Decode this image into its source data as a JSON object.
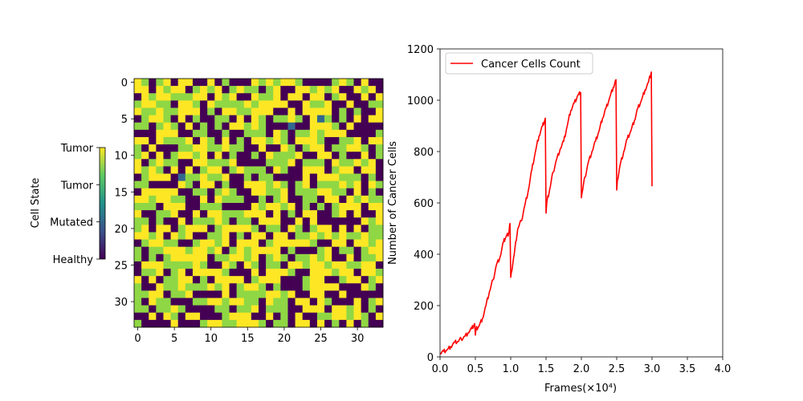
{
  "chart_data": [
    {
      "type": "heatmap",
      "rows": 34,
      "cols": 34,
      "xticks": [
        "0",
        "5",
        "10",
        "15",
        "20",
        "25",
        "30"
      ],
      "yticks": [
        "0",
        "5",
        "10",
        "15",
        "20",
        "25",
        "30"
      ],
      "states": [
        0,
        1,
        2,
        3
      ],
      "state_colors": [
        "#440154",
        "#31688e",
        "#8fd744",
        "#fde725"
      ],
      "values": [
        [
          3,
          2,
          0,
          2,
          3,
          0,
          3,
          3,
          0,
          0,
          3,
          0,
          2,
          0,
          0,
          0,
          3,
          2,
          3,
          2,
          3,
          3,
          2,
          0,
          0,
          0,
          0,
          2,
          3,
          2,
          0,
          3,
          0,
          0
        ],
        [
          3,
          3,
          0,
          3,
          2,
          3,
          3,
          0,
          2,
          3,
          2,
          3,
          0,
          2,
          3,
          2,
          2,
          0,
          2,
          3,
          0,
          0,
          3,
          3,
          2,
          3,
          2,
          3,
          0,
          0,
          3,
          2,
          3,
          0
        ],
        [
          0,
          3,
          2,
          3,
          3,
          2,
          2,
          2,
          3,
          3,
          0,
          3,
          2,
          3,
          0,
          0,
          3,
          2,
          2,
          3,
          0,
          3,
          3,
          0,
          3,
          3,
          0,
          2,
          3,
          0,
          0,
          3,
          0,
          3
        ],
        [
          2,
          3,
          3,
          2,
          2,
          0,
          3,
          3,
          2,
          0,
          3,
          2,
          2,
          2,
          2,
          3,
          2,
          3,
          3,
          3,
          3,
          0,
          0,
          3,
          2,
          2,
          3,
          0,
          0,
          3,
          0,
          0,
          2,
          2
        ],
        [
          3,
          2,
          2,
          3,
          2,
          2,
          3,
          3,
          3,
          0,
          2,
          0,
          3,
          3,
          2,
          2,
          3,
          3,
          3,
          0,
          0,
          3,
          0,
          3,
          3,
          3,
          3,
          0,
          2,
          0,
          2,
          0,
          0,
          3
        ],
        [
          0,
          2,
          3,
          3,
          2,
          0,
          3,
          0,
          2,
          0,
          0,
          2,
          2,
          0,
          3,
          0,
          3,
          2,
          0,
          2,
          2,
          3,
          2,
          0,
          3,
          1,
          2,
          0,
          2,
          0,
          3,
          0,
          3,
          3
        ],
        [
          2,
          2,
          0,
          2,
          3,
          2,
          0,
          3,
          0,
          2,
          0,
          2,
          0,
          3,
          3,
          2,
          3,
          2,
          0,
          0,
          0,
          1,
          0,
          0,
          3,
          3,
          3,
          2,
          0,
          3,
          0,
          0,
          0,
          0
        ],
        [
          0,
          0,
          0,
          3,
          3,
          3,
          0,
          0,
          2,
          2,
          0,
          0,
          2,
          0,
          0,
          2,
          2,
          2,
          0,
          3,
          2,
          0,
          2,
          2,
          3,
          2,
          3,
          3,
          3,
          0,
          0,
          0,
          0,
          2
        ],
        [
          3,
          3,
          0,
          3,
          2,
          2,
          2,
          3,
          0,
          3,
          2,
          0,
          3,
          0,
          2,
          0,
          3,
          3,
          2,
          3,
          2,
          0,
          3,
          3,
          3,
          2,
          0,
          0,
          2,
          2,
          3,
          0,
          3,
          3
        ],
        [
          2,
          0,
          3,
          0,
          0,
          0,
          2,
          2,
          3,
          3,
          2,
          2,
          3,
          2,
          2,
          0,
          0,
          3,
          0,
          0,
          3,
          2,
          0,
          2,
          3,
          3,
          0,
          2,
          2,
          3,
          3,
          2,
          0,
          2
        ],
        [
          2,
          3,
          0,
          3,
          0,
          2,
          3,
          3,
          2,
          3,
          0,
          3,
          0,
          2,
          0,
          0,
          2,
          0,
          3,
          2,
          2,
          2,
          3,
          0,
          0,
          3,
          3,
          0,
          2,
          0,
          0,
          3,
          0,
          2
        ],
        [
          3,
          0,
          2,
          3,
          2,
          2,
          0,
          0,
          3,
          3,
          2,
          2,
          2,
          3,
          0,
          0,
          0,
          0,
          2,
          2,
          2,
          3,
          0,
          2,
          2,
          2,
          0,
          3,
          2,
          2,
          3,
          2,
          3,
          0
        ],
        [
          3,
          2,
          3,
          2,
          0,
          3,
          0,
          3,
          0,
          2,
          3,
          3,
          0,
          2,
          3,
          2,
          2,
          2,
          0,
          3,
          2,
          0,
          0,
          3,
          3,
          3,
          0,
          2,
          3,
          3,
          0,
          3,
          3,
          0
        ],
        [
          0,
          2,
          3,
          3,
          3,
          0,
          1,
          2,
          2,
          3,
          2,
          2,
          3,
          0,
          0,
          2,
          0,
          2,
          2,
          0,
          0,
          0,
          0,
          3,
          0,
          3,
          3,
          3,
          2,
          2,
          2,
          0,
          2,
          0
        ],
        [
          2,
          2,
          0,
          0,
          0,
          0,
          3,
          2,
          0,
          3,
          3,
          0,
          2,
          0,
          0,
          3,
          3,
          3,
          2,
          3,
          2,
          0,
          2,
          3,
          0,
          2,
          2,
          2,
          3,
          2,
          3,
          0,
          3,
          2
        ],
        [
          0,
          3,
          3,
          3,
          3,
          3,
          0,
          0,
          2,
          2,
          0,
          2,
          3,
          2,
          0,
          0,
          3,
          3,
          2,
          2,
          3,
          0,
          2,
          2,
          2,
          3,
          3,
          2,
          2,
          0,
          3,
          0,
          2,
          0
        ],
        [
          3,
          3,
          2,
          3,
          3,
          2,
          2,
          0,
          0,
          3,
          0,
          3,
          2,
          2,
          2,
          0,
          0,
          2,
          0,
          2,
          3,
          0,
          0,
          2,
          2,
          0,
          3,
          3,
          0,
          3,
          2,
          3,
          2,
          2
        ],
        [
          2,
          2,
          2,
          0,
          3,
          3,
          3,
          0,
          0,
          2,
          2,
          2,
          0,
          0,
          0,
          0,
          3,
          2,
          3,
          3,
          2,
          3,
          0,
          2,
          0,
          2,
          0,
          2,
          3,
          3,
          3,
          0,
          3,
          3
        ],
        [
          3,
          0,
          0,
          2,
          2,
          3,
          0,
          0,
          3,
          0,
          3,
          3,
          2,
          2,
          2,
          3,
          3,
          3,
          0,
          3,
          0,
          2,
          0,
          3,
          3,
          0,
          0,
          2,
          3,
          0,
          3,
          0,
          0,
          3
        ],
        [
          2,
          2,
          0,
          2,
          0,
          0,
          3,
          0,
          2,
          2,
          2,
          3,
          2,
          0,
          2,
          2,
          0,
          3,
          3,
          3,
          0,
          0,
          3,
          0,
          3,
          0,
          0,
          0,
          0,
          0,
          0,
          3,
          2,
          3
        ],
        [
          2,
          3,
          0,
          3,
          3,
          0,
          2,
          3,
          3,
          3,
          0,
          2,
          3,
          3,
          3,
          3,
          2,
          0,
          2,
          2,
          0,
          3,
          2,
          0,
          2,
          3,
          3,
          0,
          3,
          0,
          3,
          0,
          2,
          2
        ],
        [
          3,
          3,
          2,
          3,
          0,
          3,
          2,
          3,
          0,
          0,
          2,
          2,
          3,
          0,
          2,
          0,
          3,
          3,
          0,
          3,
          3,
          0,
          2,
          2,
          3,
          2,
          3,
          2,
          3,
          2,
          2,
          3,
          2,
          2
        ],
        [
          0,
          2,
          3,
          3,
          2,
          2,
          0,
          0,
          2,
          3,
          3,
          2,
          3,
          0,
          3,
          3,
          3,
          0,
          2,
          3,
          3,
          3,
          3,
          3,
          2,
          0,
          0,
          3,
          3,
          0,
          3,
          3,
          2,
          3
        ],
        [
          2,
          0,
          2,
          2,
          3,
          3,
          3,
          2,
          3,
          3,
          2,
          3,
          0,
          2,
          3,
          2,
          3,
          3,
          3,
          3,
          0,
          2,
          0,
          0,
          0,
          2,
          3,
          0,
          2,
          2,
          0,
          2,
          3,
          3
        ],
        [
          2,
          0,
          2,
          0,
          2,
          3,
          3,
          3,
          3,
          3,
          0,
          2,
          2,
          3,
          3,
          2,
          3,
          0,
          2,
          3,
          2,
          0,
          2,
          2,
          3,
          2,
          3,
          0,
          0,
          3,
          0,
          2,
          2,
          3
        ],
        [
          0,
          3,
          3,
          3,
          2,
          2,
          2,
          2,
          3,
          2,
          0,
          0,
          3,
          2,
          0,
          3,
          2,
          0,
          2,
          2,
          0,
          3,
          3,
          2,
          3,
          3,
          2,
          3,
          3,
          2,
          2,
          3,
          3,
          0
        ],
        [
          0,
          2,
          2,
          3,
          0,
          2,
          3,
          0,
          3,
          3,
          3,
          3,
          2,
          0,
          0,
          0,
          3,
          0,
          3,
          3,
          3,
          2,
          0,
          0,
          3,
          3,
          3,
          2,
          3,
          3,
          0,
          3,
          3,
          2
        ],
        [
          3,
          0,
          3,
          0,
          2,
          2,
          3,
          3,
          0,
          2,
          0,
          3,
          3,
          3,
          3,
          0,
          2,
          3,
          3,
          3,
          0,
          0,
          0,
          2,
          3,
          3,
          0,
          0,
          2,
          3,
          3,
          0,
          2,
          3
        ],
        [
          2,
          0,
          0,
          3,
          2,
          2,
          3,
          2,
          2,
          2,
          3,
          2,
          3,
          0,
          2,
          3,
          3,
          2,
          0,
          2,
          0,
          0,
          0,
          2,
          3,
          3,
          3,
          3,
          0,
          0,
          0,
          3,
          2,
          0
        ],
        [
          2,
          2,
          3,
          3,
          0,
          2,
          2,
          3,
          0,
          0,
          0,
          0,
          3,
          0,
          2,
          2,
          2,
          2,
          3,
          3,
          2,
          3,
          0,
          0,
          3,
          3,
          0,
          0,
          3,
          0,
          0,
          0,
          0,
          0
        ],
        [
          2,
          0,
          3,
          2,
          2,
          0,
          0,
          0,
          2,
          2,
          3,
          3,
          2,
          3,
          3,
          2,
          2,
          0,
          3,
          2,
          2,
          0,
          3,
          3,
          0,
          3,
          2,
          0,
          0,
          0,
          3,
          0,
          2,
          3
        ],
        [
          2,
          2,
          0,
          2,
          2,
          3,
          2,
          0,
          0,
          0,
          0,
          2,
          2,
          0,
          2,
          2,
          3,
          0,
          2,
          2,
          2,
          0,
          0,
          3,
          3,
          3,
          0,
          3,
          3,
          2,
          3,
          0,
          2,
          0
        ],
        [
          0,
          0,
          3,
          0,
          3,
          2,
          0,
          3,
          3,
          0,
          0,
          0,
          2,
          3,
          3,
          3,
          0,
          0,
          3,
          0,
          2,
          0,
          3,
          0,
          0,
          2,
          2,
          3,
          3,
          2,
          3,
          2,
          0,
          3
        ],
        [
          2,
          0,
          0,
          0,
          0,
          3,
          0,
          0,
          0,
          2,
          3,
          3,
          2,
          2,
          3,
          3,
          3,
          2,
          0,
          2,
          2,
          0,
          3,
          3,
          0,
          3,
          0,
          2,
          0,
          3,
          0,
          2,
          0,
          0
        ]
      ]
    },
    {
      "type": "line",
      "xlabel": "Frames(×10⁴)",
      "ylabel": "Number of Cancer Cells",
      "xlim": [
        0.0,
        4.0
      ],
      "ylim": [
        0,
        1200
      ],
      "xticks": [
        "0.0",
        "0.5",
        "1.0",
        "1.5",
        "2.0",
        "2.5",
        "3.0",
        "3.5",
        "4.0"
      ],
      "yticks": [
        "0",
        "200",
        "400",
        "600",
        "800",
        "1000",
        "1200"
      ],
      "legend": "top-left",
      "series": [
        {
          "name": "Cancer Cells Count",
          "color": "#ff0000",
          "x": [
            0.0,
            0.05,
            0.1,
            0.15,
            0.2,
            0.25,
            0.3,
            0.35,
            0.4,
            0.45,
            0.49,
            0.5,
            0.51,
            0.55,
            0.6,
            0.65,
            0.7,
            0.75,
            0.8,
            0.85,
            0.9,
            0.93,
            0.97,
            0.99,
            1.0,
            1.01,
            1.05,
            1.1,
            1.15,
            1.2,
            1.25,
            1.3,
            1.35,
            1.4,
            1.45,
            1.49,
            1.5,
            1.51,
            1.55,
            1.6,
            1.65,
            1.7,
            1.75,
            1.8,
            1.85,
            1.9,
            1.95,
            1.99,
            2.0,
            2.01,
            2.05,
            2.1,
            2.15,
            2.2,
            2.25,
            2.3,
            2.35,
            2.4,
            2.45,
            2.49,
            2.5,
            2.51,
            2.55,
            2.6,
            2.65,
            2.7,
            2.75,
            2.8,
            2.85,
            2.9,
            2.95,
            2.99,
            3.0
          ],
          "y": [
            15,
            22,
            28,
            40,
            55,
            60,
            70,
            80,
            95,
            110,
            130,
            85,
            110,
            120,
            150,
            200,
            255,
            300,
            360,
            390,
            450,
            465,
            480,
            520,
            310,
            330,
            400,
            500,
            530,
            590,
            650,
            730,
            800,
            860,
            900,
            930,
            560,
            600,
            650,
            720,
            770,
            810,
            840,
            900,
            960,
            990,
            1020,
            1030,
            620,
            640,
            700,
            760,
            800,
            840,
            880,
            930,
            970,
            1010,
            1050,
            1080,
            650,
            690,
            750,
            800,
            850,
            880,
            920,
            970,
            1000,
            1040,
            1070,
            1110,
            665
          ]
        }
      ]
    },
    {
      "type": "colorbar",
      "label": "Cell State",
      "tick_labels": [
        "Tumor",
        "Tumor",
        "Mutated",
        "Healthy"
      ],
      "range": [
        0,
        3
      ]
    }
  ]
}
